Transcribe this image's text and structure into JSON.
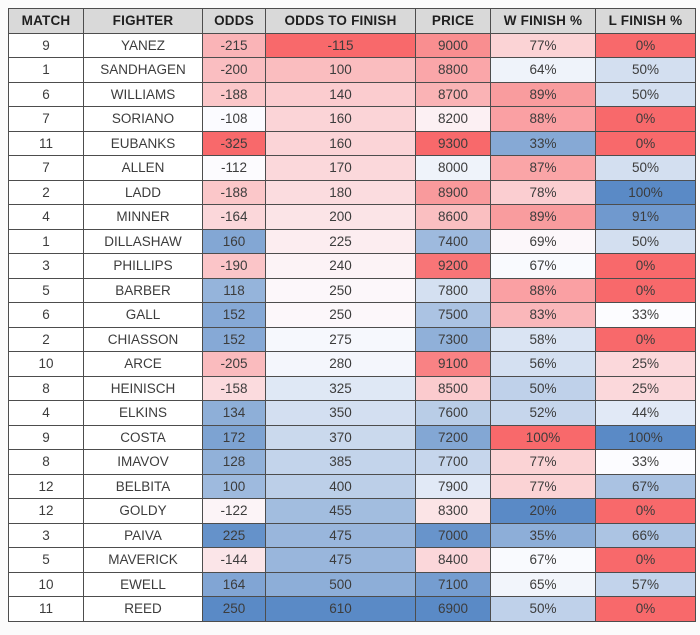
{
  "colors": {
    "header_bg": "#D9D9D9",
    "border": "#4D4D4D",
    "plain_cell_bg": "#FFFFFF",
    "scale_low_red": "#F8696B",
    "scale_mid_white": "#FCFCFF",
    "scale_high_blue": "#5A8AC6"
  },
  "table": {
    "columns": [
      {
        "key": "match",
        "label": "MATCH"
      },
      {
        "key": "fighter",
        "label": "FIGHTER"
      },
      {
        "key": "odds",
        "label": "ODDS"
      },
      {
        "key": "odds-to-finish",
        "label": "ODDS TO FINISH"
      },
      {
        "key": "price",
        "label": "PRICE"
      },
      {
        "key": "w-finish-pct",
        "label": "W FINISH %"
      },
      {
        "key": "l-finish-pct",
        "label": "L FINISH %"
      }
    ],
    "rows": [
      {
        "cells": [
          {
            "t": "9",
            "bg": "#FFFFFF"
          },
          {
            "t": "YANEZ",
            "bg": "#FFFFFF"
          },
          {
            "t": "-215",
            "bg": "#FAB4B7"
          },
          {
            "t": "-115",
            "bg": "#F8696B"
          },
          {
            "t": "9000",
            "bg": "#F98E90"
          },
          {
            "t": "77%",
            "bg": "#FBD3D5"
          },
          {
            "t": "0%",
            "bg": "#F8696B"
          }
        ]
      },
      {
        "cells": [
          {
            "t": "1",
            "bg": "#FFFFFF"
          },
          {
            "t": "SANDHAGEN",
            "bg": "#FFFFFF"
          },
          {
            "t": "-200",
            "bg": "#FABEC1"
          },
          {
            "t": "100",
            "bg": "#FABDBF"
          },
          {
            "t": "8800",
            "bg": "#FAA6A9"
          },
          {
            "t": "64%",
            "bg": "#EFF3FA"
          },
          {
            "t": "50%",
            "bg": "#D3DFF0"
          }
        ]
      },
      {
        "cells": [
          {
            "t": "6",
            "bg": "#FFFFFF"
          },
          {
            "t": "WILLIAMS",
            "bg": "#FFFFFF"
          },
          {
            "t": "-188",
            "bg": "#FBC7C9"
          },
          {
            "t": "140",
            "bg": "#FBCCCF"
          },
          {
            "t": "8700",
            "bg": "#FAB3B5"
          },
          {
            "t": "89%",
            "bg": "#F99C9E"
          },
          {
            "t": "50%",
            "bg": "#D3DFF0"
          }
        ]
      },
      {
        "cells": [
          {
            "t": "7",
            "bg": "#FFFFFF"
          },
          {
            "t": "SORIANO",
            "bg": "#FFFFFF"
          },
          {
            "t": "-108",
            "bg": "#FBFBFF"
          },
          {
            "t": "160",
            "bg": "#FBD4D7"
          },
          {
            "t": "8200",
            "bg": "#FCF0F3"
          },
          {
            "t": "88%",
            "bg": "#FAA0A3"
          },
          {
            "t": "0%",
            "bg": "#F8696B"
          }
        ]
      },
      {
        "cells": [
          {
            "t": "11",
            "bg": "#FFFFFF"
          },
          {
            "t": "EUBANKS",
            "bg": "#FFFFFF"
          },
          {
            "t": "-325",
            "bg": "#F8696B"
          },
          {
            "t": "160",
            "bg": "#FBD4D7"
          },
          {
            "t": "9300",
            "bg": "#F8696B"
          },
          {
            "t": "33%",
            "bg": "#86A9D5"
          },
          {
            "t": "0%",
            "bg": "#F8696B"
          }
        ]
      },
      {
        "cells": [
          {
            "t": "7",
            "bg": "#FFFFFF"
          },
          {
            "t": "ALLEN",
            "bg": "#FFFFFF"
          },
          {
            "t": "-112",
            "bg": "#FCFBFE"
          },
          {
            "t": "170",
            "bg": "#FBD8DB"
          },
          {
            "t": "8000",
            "bg": "#EFF3FA"
          },
          {
            "t": "87%",
            "bg": "#FAA5A7"
          },
          {
            "t": "50%",
            "bg": "#D3DFF0"
          }
        ]
      },
      {
        "cells": [
          {
            "t": "2",
            "bg": "#FFFFFF"
          },
          {
            "t": "LADD",
            "bg": "#FFFFFF"
          },
          {
            "t": "-188",
            "bg": "#FBC7C9"
          },
          {
            "t": "180",
            "bg": "#FBDCDF"
          },
          {
            "t": "8900",
            "bg": "#F99A9C"
          },
          {
            "t": "78%",
            "bg": "#FBCED1"
          },
          {
            "t": "100%",
            "bg": "#5A8AC6"
          }
        ]
      },
      {
        "cells": [
          {
            "t": "4",
            "bg": "#FFFFFF"
          },
          {
            "t": "MINNER",
            "bg": "#FFFFFF"
          },
          {
            "t": "-164",
            "bg": "#FBD7DA"
          },
          {
            "t": "200",
            "bg": "#FBE4E7"
          },
          {
            "t": "8600",
            "bg": "#FABFC1"
          },
          {
            "t": "89%",
            "bg": "#F99C9E"
          },
          {
            "t": "91%",
            "bg": "#7099CE"
          }
        ]
      },
      {
        "cells": [
          {
            "t": "1",
            "bg": "#FFFFFF"
          },
          {
            "t": "DILLASHAW",
            "bg": "#FFFFFF"
          },
          {
            "t": "160",
            "bg": "#83A7D4"
          },
          {
            "t": "225",
            "bg": "#FCEDF0"
          },
          {
            "t": "7400",
            "bg": "#9EBADE"
          },
          {
            "t": "69%",
            "bg": "#FCF7FA"
          },
          {
            "t": "50%",
            "bg": "#D3DFF0"
          }
        ]
      },
      {
        "cells": [
          {
            "t": "3",
            "bg": "#FFFFFF"
          },
          {
            "t": "PHILLIPS",
            "bg": "#FFFFFF"
          },
          {
            "t": "-190",
            "bg": "#FBC5C8"
          },
          {
            "t": "240",
            "bg": "#FCF3F6"
          },
          {
            "t": "9200",
            "bg": "#F87577"
          },
          {
            "t": "67%",
            "bg": "#F9FAFE"
          },
          {
            "t": "0%",
            "bg": "#F8696B"
          }
        ]
      },
      {
        "cells": [
          {
            "t": "5",
            "bg": "#FFFFFF"
          },
          {
            "t": "BARBER",
            "bg": "#FFFFFF"
          },
          {
            "t": "118",
            "bg": "#95B4DB"
          },
          {
            "t": "250",
            "bg": "#FCF7FA"
          },
          {
            "t": "7800",
            "bg": "#D4E0F1"
          },
          {
            "t": "88%",
            "bg": "#FAA0A3"
          },
          {
            "t": "0%",
            "bg": "#F8696B"
          }
        ]
      },
      {
        "cells": [
          {
            "t": "6",
            "bg": "#FFFFFF"
          },
          {
            "t": "GALL",
            "bg": "#FFFFFF"
          },
          {
            "t": "152",
            "bg": "#86A9D6"
          },
          {
            "t": "250",
            "bg": "#FCF7FA"
          },
          {
            "t": "7500",
            "bg": "#ABC3E3"
          },
          {
            "t": "83%",
            "bg": "#FAB7BA"
          },
          {
            "t": "33%",
            "bg": "#FCFCFF"
          }
        ]
      },
      {
        "cells": [
          {
            "t": "2",
            "bg": "#FFFFFF"
          },
          {
            "t": "CHIASSON",
            "bg": "#FFFFFF"
          },
          {
            "t": "152",
            "bg": "#86A9D6"
          },
          {
            "t": "275",
            "bg": "#F6F8FD"
          },
          {
            "t": "7300",
            "bg": "#90B0D9"
          },
          {
            "t": "58%",
            "bg": "#DAE4F3"
          },
          {
            "t": "0%",
            "bg": "#F8696B"
          }
        ]
      },
      {
        "cells": [
          {
            "t": "10",
            "bg": "#FFFFFF"
          },
          {
            "t": "ARCE",
            "bg": "#FFFFFF"
          },
          {
            "t": "-205",
            "bg": "#FABBBE"
          },
          {
            "t": "280",
            "bg": "#F4F6FC"
          },
          {
            "t": "9100",
            "bg": "#F98284"
          },
          {
            "t": "56%",
            "bg": "#D4E0F1"
          },
          {
            "t": "25%",
            "bg": "#FBD8DB"
          }
        ]
      },
      {
        "cells": [
          {
            "t": "8",
            "bg": "#FFFFFF"
          },
          {
            "t": "HEINISCH",
            "bg": "#FFFFFF"
          },
          {
            "t": "-158",
            "bg": "#FBDBDE"
          },
          {
            "t": "325",
            "bg": "#DFE8F5"
          },
          {
            "t": "8500",
            "bg": "#FBCBCE"
          },
          {
            "t": "50%",
            "bg": "#BFD1EA"
          },
          {
            "t": "25%",
            "bg": "#FBD8DB"
          }
        ]
      },
      {
        "cells": [
          {
            "t": "4",
            "bg": "#FFFFFF"
          },
          {
            "t": "ELKINS",
            "bg": "#FFFFFF"
          },
          {
            "t": "134",
            "bg": "#8EAFD8"
          },
          {
            "t": "350",
            "bg": "#D3DFF1"
          },
          {
            "t": "7600",
            "bg": "#B9CDE7"
          },
          {
            "t": "52%",
            "bg": "#C6D6EC"
          },
          {
            "t": "44%",
            "bg": "#E1E9F6"
          }
        ]
      },
      {
        "cells": [
          {
            "t": "9",
            "bg": "#FFFFFF"
          },
          {
            "t": "COSTA",
            "bg": "#FFFFFF"
          },
          {
            "t": "172",
            "bg": "#7DA3D2"
          },
          {
            "t": "370",
            "bg": "#CAD9ED"
          },
          {
            "t": "7200",
            "bg": "#83A7D4"
          },
          {
            "t": "100%",
            "bg": "#F8696B"
          },
          {
            "t": "100%",
            "bg": "#5A8AC6"
          }
        ]
      },
      {
        "cells": [
          {
            "t": "8",
            "bg": "#FFFFFF"
          },
          {
            "t": "IMAVOV",
            "bg": "#FFFFFF"
          },
          {
            "t": "128",
            "bg": "#91B1D9"
          },
          {
            "t": "385",
            "bg": "#C3D4EB"
          },
          {
            "t": "7700",
            "bg": "#C6D6EC"
          },
          {
            "t": "77%",
            "bg": "#FBD3D5"
          },
          {
            "t": "33%",
            "bg": "#FCFCFF"
          }
        ]
      },
      {
        "cells": [
          {
            "t": "12",
            "bg": "#FFFFFF"
          },
          {
            "t": "BELBITA",
            "bg": "#FFFFFF"
          },
          {
            "t": "100",
            "bg": "#9EBADE"
          },
          {
            "t": "400",
            "bg": "#BCCFE8"
          },
          {
            "t": "7900",
            "bg": "#E1E9F6"
          },
          {
            "t": "77%",
            "bg": "#FBD3D5"
          },
          {
            "t": "67%",
            "bg": "#AAC2E2"
          }
        ]
      },
      {
        "cells": [
          {
            "t": "12",
            "bg": "#FFFFFF"
          },
          {
            "t": "GOLDY",
            "bg": "#FFFFFF"
          },
          {
            "t": "-122",
            "bg": "#FCF4F7"
          },
          {
            "t": "455",
            "bg": "#A2BDDF"
          },
          {
            "t": "8300",
            "bg": "#FBE4E6"
          },
          {
            "t": "20%",
            "bg": "#5A8AC6"
          },
          {
            "t": "0%",
            "bg": "#F8696B"
          }
        ]
      },
      {
        "cells": [
          {
            "t": "3",
            "bg": "#FFFFFF"
          },
          {
            "t": "PAIVA",
            "bg": "#FFFFFF"
          },
          {
            "t": "225",
            "bg": "#6592CA"
          },
          {
            "t": "475",
            "bg": "#99B6DC"
          },
          {
            "t": "7000",
            "bg": "#6894CB"
          },
          {
            "t": "35%",
            "bg": "#8DAED8"
          },
          {
            "t": "66%",
            "bg": "#ACC4E3"
          }
        ]
      },
      {
        "cells": [
          {
            "t": "5",
            "bg": "#FFFFFF"
          },
          {
            "t": "MAVERICK",
            "bg": "#FFFFFF"
          },
          {
            "t": "-144",
            "bg": "#FBE5E8"
          },
          {
            "t": "475",
            "bg": "#99B6DC"
          },
          {
            "t": "8400",
            "bg": "#FBD7DA"
          },
          {
            "t": "67%",
            "bg": "#F9FAFE"
          },
          {
            "t": "0%",
            "bg": "#F8696B"
          }
        ]
      },
      {
        "cells": [
          {
            "t": "10",
            "bg": "#FFFFFF"
          },
          {
            "t": "EWELL",
            "bg": "#FFFFFF"
          },
          {
            "t": "164",
            "bg": "#81A5D4"
          },
          {
            "t": "500",
            "bg": "#8DAED8"
          },
          {
            "t": "7100",
            "bg": "#759DD0"
          },
          {
            "t": "65%",
            "bg": "#F2F5FB"
          },
          {
            "t": "57%",
            "bg": "#C2D3EB"
          }
        ]
      },
      {
        "cells": [
          {
            "t": "11",
            "bg": "#FFFFFF"
          },
          {
            "t": "REED",
            "bg": "#FFFFFF"
          },
          {
            "t": "250",
            "bg": "#5A8AC6"
          },
          {
            "t": "610",
            "bg": "#5A8AC6"
          },
          {
            "t": "6900",
            "bg": "#5A8AC6"
          },
          {
            "t": "50%",
            "bg": "#BFD1EA"
          },
          {
            "t": "0%",
            "bg": "#F8696B"
          }
        ]
      }
    ]
  }
}
